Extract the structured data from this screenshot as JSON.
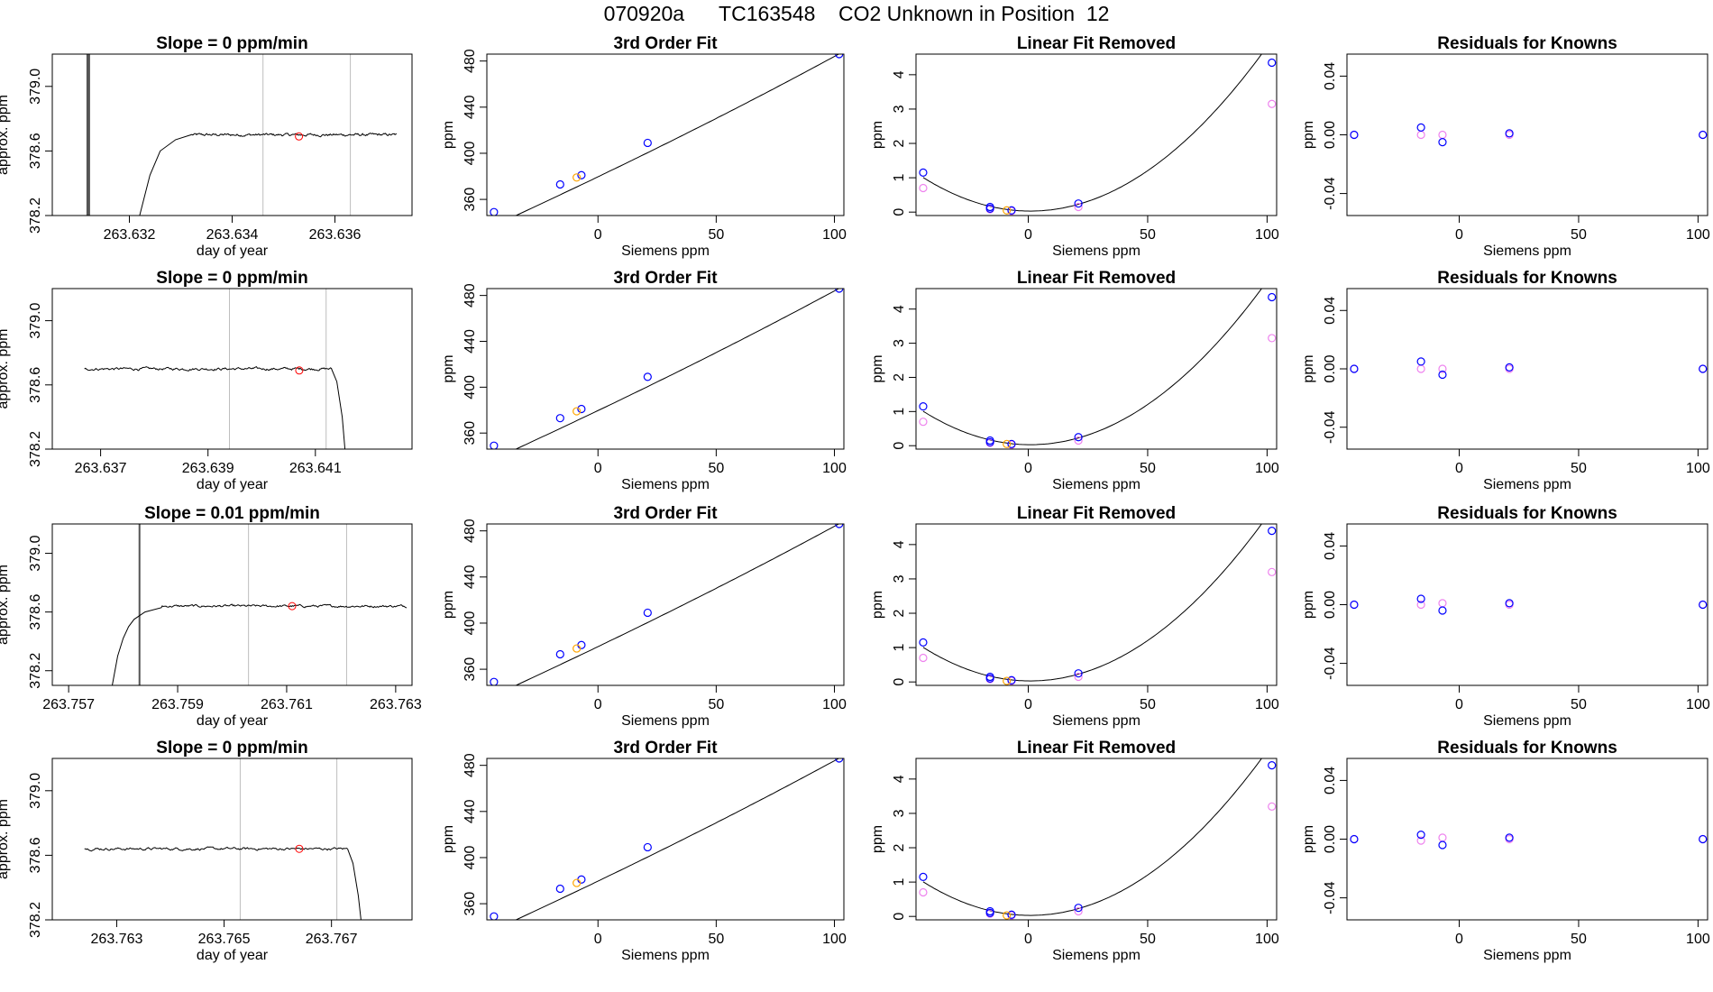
{
  "title": "070920a      TC163548    CO2 Unknown in Position  12",
  "colors": {
    "trace": "#000000",
    "vline": "#bebebe",
    "marker": "#ff0000",
    "known": "#0000ff",
    "fitted": "#ee82ee",
    "unknown": "#ffa500"
  },
  "chart_data": [
    {
      "row": 0,
      "col": 0,
      "type": "line",
      "title": "Slope =  0  ppm/min",
      "xlabel": "day of year",
      "ylabel": "approx. ppm",
      "xlim": [
        263.6305,
        263.6375
      ],
      "ylim": [
        378.2,
        379.2
      ],
      "xticks": [
        263.632,
        263.634,
        263.636
      ],
      "xtick_labels": [
        "263.632",
        "263.634",
        "263.636"
      ],
      "yticks": [
        378.2,
        378.6,
        379.0
      ],
      "ytick_labels": [
        "378.2",
        "378.6",
        "379.0"
      ],
      "vlines": [
        263.6346,
        263.6363
      ],
      "spike": {
        "x": 263.6312,
        "width": 2
      },
      "trace": {
        "x_start": 263.6322,
        "x_end": 263.6372,
        "rise": [
          [
            263.6322,
            378.2
          ],
          [
            263.6324,
            378.45
          ],
          [
            263.6326,
            378.6
          ],
          [
            263.6329,
            378.67
          ],
          [
            263.6332,
            378.7
          ]
        ],
        "level": 378.7,
        "noise": 0.006
      },
      "marker": {
        "x": 263.6353,
        "y": 378.69
      }
    },
    {
      "row": 0,
      "col": 1,
      "type": "scatter",
      "title": "3rd Order Fit",
      "xlabel": "Siemens ppm",
      "ylabel": "ppm",
      "xlim": [
        -47,
        104
      ],
      "ylim": [
        346,
        486
      ],
      "xticks": [
        0,
        50,
        100
      ],
      "xtick_labels": [
        "0",
        "50",
        "100"
      ],
      "yticks": [
        360,
        400,
        440,
        480
      ],
      "ytick_labels": [
        "360",
        "400",
        "440",
        "480"
      ],
      "curve": {
        "coeffs": [
          379.6,
          0.985,
          0.0005,
          9e-07
        ]
      },
      "knowns": [
        [
          -44,
          349
        ],
        [
          -16,
          373
        ],
        [
          -7,
          381
        ],
        [
          21,
          409
        ],
        [
          102,
          486
        ]
      ],
      "unknown": [
        [
          -9,
          379
        ]
      ]
    },
    {
      "row": 0,
      "col": 2,
      "type": "scatter",
      "title": "Linear Fit Removed",
      "xlabel": "Siemens ppm",
      "ylabel": "ppm",
      "xlim": [
        -47,
        104
      ],
      "ylim": [
        -0.1,
        4.6
      ],
      "xticks": [
        0,
        50,
        100
      ],
      "xtick_labels": [
        "0",
        "50",
        "100"
      ],
      "yticks": [
        0,
        1,
        2,
        3,
        4
      ],
      "ytick_labels": [
        "0",
        "1",
        "2",
        "3",
        "4"
      ],
      "curve": {
        "coeffs": [
          0.03,
          -0.00083,
          0.0004864,
          8e-09
        ]
      },
      "knowns": [
        [
          -44,
          1.15
        ],
        [
          -16,
          0.15
        ],
        [
          -16,
          0.1
        ],
        [
          -7,
          0.05
        ],
        [
          21,
          0.25
        ],
        [
          102,
          4.35
        ]
      ],
      "fitted": [
        [
          -44,
          0.7
        ],
        [
          -16,
          0.08
        ],
        [
          -7,
          0.03
        ],
        [
          21,
          0.15
        ],
        [
          102,
          3.15
        ]
      ],
      "unknown": [
        [
          -9,
          0.05
        ]
      ]
    },
    {
      "row": 0,
      "col": 3,
      "type": "scatter",
      "title": "Residuals for Knowns",
      "xlabel": "Siemens ppm",
      "ylabel": "ppm",
      "xlim": [
        -47,
        104
      ],
      "ylim": [
        -0.055,
        0.055
      ],
      "xticks": [
        0,
        50,
        100
      ],
      "xtick_labels": [
        "0",
        "50",
        "100"
      ],
      "yticks": [
        -0.04,
        0,
        0.04
      ],
      "ytick_labels": [
        "-0.04",
        "0.00",
        "0.04"
      ],
      "knowns": [
        [
          -44,
          0
        ],
        [
          -16,
          0.005
        ],
        [
          -7,
          -0.005
        ],
        [
          21,
          0.001
        ],
        [
          102,
          0
        ]
      ],
      "fitted": [
        [
          -44,
          0
        ],
        [
          -16,
          0
        ],
        [
          -7,
          0
        ],
        [
          21,
          0
        ],
        [
          102,
          0
        ]
      ]
    },
    {
      "row": 1,
      "col": 0,
      "type": "line",
      "title": "Slope =  0  ppm/min",
      "xlabel": "day of year",
      "ylabel": "approx. ppm",
      "xlim": [
        263.6361,
        263.6428
      ],
      "ylim": [
        378.2,
        379.2
      ],
      "xticks": [
        263.637,
        263.639,
        263.641
      ],
      "xtick_labels": [
        "263.637",
        "263.639",
        "263.641"
      ],
      "yticks": [
        378.2,
        378.6,
        379.0
      ],
      "ytick_labels": [
        "378.2",
        "378.6",
        "379.0"
      ],
      "vlines": [
        263.6394,
        263.6412
      ],
      "trace": {
        "x_start": 263.6367,
        "x_end": 263.6413,
        "fall": [
          [
            263.6413,
            378.7
          ],
          [
            263.6414,
            378.62
          ],
          [
            263.6415,
            378.4
          ],
          [
            263.64155,
            378.2
          ]
        ],
        "level": 378.7,
        "noise": 0.006
      },
      "marker": {
        "x": 263.6407,
        "y": 378.69
      }
    },
    {
      "row": 1,
      "col": 1,
      "type": "scatter",
      "title": "3rd Order Fit",
      "xlabel": "Siemens ppm",
      "ylabel": "ppm",
      "xlim": [
        -47,
        104
      ],
      "ylim": [
        346,
        486
      ],
      "xticks": [
        0,
        50,
        100
      ],
      "xtick_labels": [
        "0",
        "50",
        "100"
      ],
      "yticks": [
        360,
        400,
        440,
        480
      ],
      "ytick_labels": [
        "360",
        "400",
        "440",
        "480"
      ],
      "curve": {
        "coeffs": [
          379.6,
          0.985,
          0.0005,
          9e-07
        ]
      },
      "knowns": [
        [
          -44,
          349
        ],
        [
          -16,
          373
        ],
        [
          -7,
          381
        ],
        [
          21,
          409
        ],
        [
          102,
          486
        ]
      ],
      "unknown": [
        [
          -9,
          379
        ]
      ]
    },
    {
      "row": 1,
      "col": 2,
      "type": "scatter",
      "title": "Linear Fit Removed",
      "xlabel": "Siemens ppm",
      "ylabel": "ppm",
      "xlim": [
        -47,
        104
      ],
      "ylim": [
        -0.1,
        4.6
      ],
      "xticks": [
        0,
        50,
        100
      ],
      "xtick_labels": [
        "0",
        "50",
        "100"
      ],
      "yticks": [
        0,
        1,
        2,
        3,
        4
      ],
      "ytick_labels": [
        "0",
        "1",
        "2",
        "3",
        "4"
      ],
      "curve": {
        "coeffs": [
          0.03,
          -0.00083,
          0.0004864,
          8e-09
        ]
      },
      "knowns": [
        [
          -44,
          1.15
        ],
        [
          -16,
          0.15
        ],
        [
          -16,
          0.1
        ],
        [
          -7,
          0.05
        ],
        [
          21,
          0.25
        ],
        [
          102,
          4.35
        ]
      ],
      "fitted": [
        [
          -44,
          0.7
        ],
        [
          -16,
          0.08
        ],
        [
          -7,
          0.03
        ],
        [
          21,
          0.15
        ],
        [
          102,
          3.15
        ]
      ],
      "unknown": [
        [
          -9,
          0.05
        ]
      ]
    },
    {
      "row": 1,
      "col": 3,
      "type": "scatter",
      "title": "Residuals for Knowns",
      "xlabel": "Siemens ppm",
      "ylabel": "ppm",
      "xlim": [
        -47,
        104
      ],
      "ylim": [
        -0.055,
        0.055
      ],
      "xticks": [
        0,
        50,
        100
      ],
      "xtick_labels": [
        "0",
        "50",
        "100"
      ],
      "yticks": [
        -0.04,
        0,
        0.04
      ],
      "ytick_labels": [
        "-0.04",
        "0.00",
        "0.04"
      ],
      "knowns": [
        [
          -44,
          0
        ],
        [
          -16,
          0.005
        ],
        [
          -7,
          -0.004
        ],
        [
          21,
          0.001
        ],
        [
          102,
          0
        ]
      ],
      "fitted": [
        [
          -44,
          0
        ],
        [
          -16,
          0
        ],
        [
          -7,
          0
        ],
        [
          21,
          0
        ],
        [
          102,
          0
        ]
      ]
    },
    {
      "row": 2,
      "col": 0,
      "type": "line",
      "title": "Slope =  0.01  ppm/min",
      "xlabel": "day of year",
      "ylabel": "approx. ppm",
      "xlim": [
        263.7567,
        263.7633
      ],
      "ylim": [
        378.1,
        379.2
      ],
      "xticks": [
        263.757,
        263.759,
        263.761,
        263.763
      ],
      "xtick_labels": [
        "263.757",
        "263.759",
        "263.761",
        "263.763"
      ],
      "yticks": [
        378.2,
        378.6,
        379.0
      ],
      "ytick_labels": [
        "378.2",
        "378.6",
        "379.0"
      ],
      "vlines": [
        263.7603,
        263.7621
      ],
      "spike": {
        "x": 263.7583,
        "width": 1
      },
      "trace": {
        "x_start": 263.7578,
        "x_end": 263.7632,
        "rise": [
          [
            263.7578,
            378.1
          ],
          [
            263.7579,
            378.3
          ],
          [
            263.758,
            378.42
          ],
          [
            263.7581,
            378.5
          ],
          [
            263.7582,
            378.55
          ],
          [
            263.7584,
            378.6
          ],
          [
            263.7587,
            378.63
          ]
        ],
        "level": 378.64,
        "noise": 0.006
      },
      "marker": {
        "x": 263.7611,
        "y": 378.64
      }
    },
    {
      "row": 2,
      "col": 1,
      "type": "scatter",
      "title": "3rd Order Fit",
      "xlabel": "Siemens ppm",
      "ylabel": "ppm",
      "xlim": [
        -47,
        104
      ],
      "ylim": [
        346,
        486
      ],
      "xticks": [
        0,
        50,
        100
      ],
      "xtick_labels": [
        "0",
        "50",
        "100"
      ],
      "yticks": [
        360,
        400,
        440,
        480
      ],
      "ytick_labels": [
        "360",
        "400",
        "440",
        "480"
      ],
      "curve": {
        "coeffs": [
          379.6,
          0.985,
          0.0005,
          9e-07
        ]
      },
      "knowns": [
        [
          -44,
          349
        ],
        [
          -16,
          373
        ],
        [
          -7,
          381
        ],
        [
          21,
          409
        ],
        [
          102,
          486
        ]
      ],
      "unknown": [
        [
          -9,
          378
        ]
      ]
    },
    {
      "row": 2,
      "col": 2,
      "type": "scatter",
      "title": "Linear Fit Removed",
      "xlabel": "Siemens ppm",
      "ylabel": "ppm",
      "xlim": [
        -47,
        104
      ],
      "ylim": [
        -0.1,
        4.6
      ],
      "xticks": [
        0,
        50,
        100
      ],
      "xtick_labels": [
        "0",
        "50",
        "100"
      ],
      "yticks": [
        0,
        1,
        2,
        3,
        4
      ],
      "ytick_labels": [
        "0",
        "1",
        "2",
        "3",
        "4"
      ],
      "curve": {
        "coeffs": [
          0.03,
          -0.00083,
          0.0004864,
          8e-09
        ]
      },
      "knowns": [
        [
          -44,
          1.15
        ],
        [
          -16,
          0.15
        ],
        [
          -16,
          0.1
        ],
        [
          -7,
          0.05
        ],
        [
          21,
          0.25
        ],
        [
          102,
          4.4
        ]
      ],
      "fitted": [
        [
          -44,
          0.7
        ],
        [
          -16,
          0.08
        ],
        [
          -7,
          0.03
        ],
        [
          21,
          0.15
        ],
        [
          102,
          3.2
        ]
      ],
      "unknown": [
        [
          -9,
          0.03
        ]
      ]
    },
    {
      "row": 2,
      "col": 3,
      "type": "scatter",
      "title": "Residuals for Knowns",
      "xlabel": "Siemens ppm",
      "ylabel": "ppm",
      "xlim": [
        -47,
        104
      ],
      "ylim": [
        -0.055,
        0.055
      ],
      "xticks": [
        0,
        50,
        100
      ],
      "xtick_labels": [
        "0",
        "50",
        "100"
      ],
      "yticks": [
        -0.04,
        0,
        0.04
      ],
      "ytick_labels": [
        "-0.04",
        "0.00",
        "0.04"
      ],
      "knowns": [
        [
          -44,
          0
        ],
        [
          -16,
          0.004
        ],
        [
          -7,
          -0.004
        ],
        [
          21,
          0.001
        ],
        [
          102,
          0
        ]
      ],
      "fitted": [
        [
          -44,
          0
        ],
        [
          -16,
          0
        ],
        [
          -7,
          0.001
        ],
        [
          21,
          0
        ],
        [
          102,
          0
        ]
      ]
    },
    {
      "row": 3,
      "col": 0,
      "type": "line",
      "title": "Slope =  0  ppm/min",
      "xlabel": "day of year",
      "ylabel": "approx. ppm",
      "xlim": [
        263.7618,
        263.7685
      ],
      "ylim": [
        378.2,
        379.2
      ],
      "xticks": [
        263.763,
        263.765,
        263.767
      ],
      "xtick_labels": [
        "263.763",
        "263.765",
        "263.767"
      ],
      "yticks": [
        378.2,
        378.6,
        379.0
      ],
      "ytick_labels": [
        "378.2",
        "378.6",
        "379.0"
      ],
      "vlines": [
        263.7653,
        263.7671
      ],
      "trace": {
        "x_start": 263.7624,
        "x_end": 263.7673,
        "fall": [
          [
            263.7673,
            378.64
          ],
          [
            263.7674,
            378.55
          ],
          [
            263.7675,
            378.35
          ],
          [
            263.76755,
            378.2
          ]
        ],
        "level": 378.64,
        "noise": 0.006
      },
      "marker": {
        "x": 263.7664,
        "y": 378.64
      }
    },
    {
      "row": 3,
      "col": 1,
      "type": "scatter",
      "title": "3rd Order Fit",
      "xlabel": "Siemens ppm",
      "ylabel": "ppm",
      "xlim": [
        -47,
        104
      ],
      "ylim": [
        346,
        486
      ],
      "xticks": [
        0,
        50,
        100
      ],
      "xtick_labels": [
        "0",
        "50",
        "100"
      ],
      "yticks": [
        360,
        400,
        440,
        480
      ],
      "ytick_labels": [
        "360",
        "400",
        "440",
        "480"
      ],
      "curve": {
        "coeffs": [
          379.6,
          0.985,
          0.0005,
          9e-07
        ]
      },
      "knowns": [
        [
          -44,
          349
        ],
        [
          -16,
          373
        ],
        [
          -7,
          381
        ],
        [
          21,
          409
        ],
        [
          102,
          486
        ]
      ],
      "unknown": [
        [
          -9,
          378
        ]
      ]
    },
    {
      "row": 3,
      "col": 2,
      "type": "scatter",
      "title": "Linear Fit Removed",
      "xlabel": "Siemens ppm",
      "ylabel": "ppm",
      "xlim": [
        -47,
        104
      ],
      "ylim": [
        -0.1,
        4.6
      ],
      "xticks": [
        0,
        50,
        100
      ],
      "xtick_labels": [
        "0",
        "50",
        "100"
      ],
      "yticks": [
        0,
        1,
        2,
        3,
        4
      ],
      "ytick_labels": [
        "0",
        "1",
        "2",
        "3",
        "4"
      ],
      "curve": {
        "coeffs": [
          0.03,
          -0.00083,
          0.0004864,
          8e-09
        ]
      },
      "knowns": [
        [
          -44,
          1.15
        ],
        [
          -16,
          0.15
        ],
        [
          -16,
          0.1
        ],
        [
          -7,
          0.05
        ],
        [
          21,
          0.25
        ],
        [
          102,
          4.4
        ]
      ],
      "fitted": [
        [
          -44,
          0.7
        ],
        [
          -16,
          0.08
        ],
        [
          -7,
          0.03
        ],
        [
          21,
          0.15
        ],
        [
          102,
          3.2
        ]
      ],
      "unknown": [
        [
          -9,
          0.03
        ]
      ]
    },
    {
      "row": 3,
      "col": 3,
      "type": "scatter",
      "title": "Residuals for Knowns",
      "xlabel": "Siemens ppm",
      "ylabel": "ppm",
      "xlim": [
        -47,
        104
      ],
      "ylim": [
        -0.055,
        0.055
      ],
      "xticks": [
        0,
        50,
        100
      ],
      "xtick_labels": [
        "0",
        "50",
        "100"
      ],
      "yticks": [
        -0.04,
        0,
        0.04
      ],
      "ytick_labels": [
        "-0.04",
        "0.00",
        "0.04"
      ],
      "knowns": [
        [
          -44,
          0
        ],
        [
          -16,
          0.003
        ],
        [
          -7,
          -0.004
        ],
        [
          21,
          0.001
        ],
        [
          102,
          0
        ]
      ],
      "fitted": [
        [
          -44,
          0
        ],
        [
          -16,
          -0.001
        ],
        [
          -7,
          0.001
        ],
        [
          21,
          0
        ],
        [
          102,
          0
        ]
      ]
    }
  ]
}
